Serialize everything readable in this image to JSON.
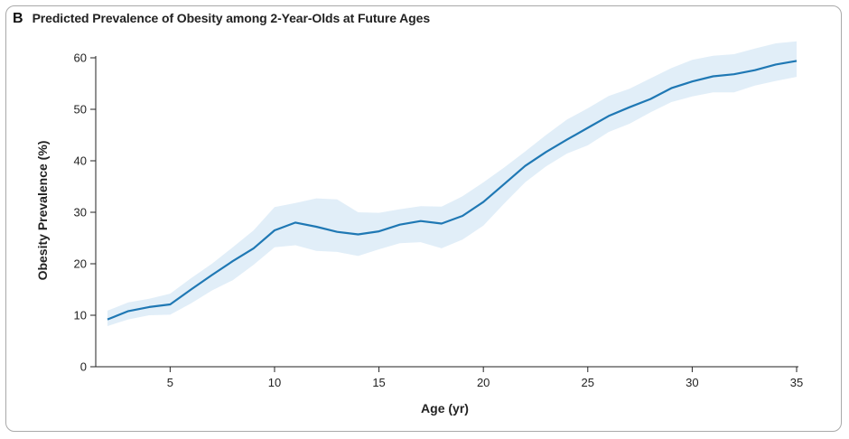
{
  "panel_label": "B",
  "chart_data": {
    "type": "line",
    "title": "Predicted Prevalence of Obesity among 2-Year-Olds at Future Ages",
    "xlabel": "Age (yr)",
    "ylabel": "Obesity Prevalence (%)",
    "xlim": [
      2,
      35
    ],
    "ylim": [
      0,
      60
    ],
    "xticks": [
      5,
      10,
      15,
      20,
      25,
      30,
      35
    ],
    "yticks": [
      0,
      10,
      20,
      30,
      40,
      50,
      60
    ],
    "grid": false,
    "colors": {
      "line": "#1f78b4",
      "band": "#e1eef8"
    },
    "x": [
      2,
      3,
      4,
      5,
      6,
      7,
      8,
      9,
      10,
      11,
      12,
      13,
      14,
      15,
      16,
      17,
      18,
      19,
      20,
      21,
      22,
      23,
      24,
      25,
      26,
      27,
      28,
      29,
      30,
      31,
      32,
      33,
      34,
      35
    ],
    "y": [
      9.2,
      10.8,
      11.6,
      12.1,
      15.0,
      17.8,
      20.5,
      23.0,
      26.5,
      28.0,
      27.2,
      26.2,
      25.7,
      26.3,
      27.6,
      28.3,
      27.8,
      29.3,
      32.0,
      35.5,
      39.0,
      41.7,
      44.1,
      46.4,
      48.7,
      50.4,
      52.0,
      54.1,
      55.4,
      56.4,
      56.8,
      57.6,
      58.7,
      59.4
    ],
    "upper": [
      10.9,
      12.5,
      13.2,
      14.2,
      17.2,
      20.0,
      23.2,
      26.5,
      31.0,
      31.8,
      32.7,
      32.5,
      30.0,
      29.9,
      30.6,
      31.2,
      31.1,
      33.1,
      35.8,
      38.7,
      41.8,
      45.0,
      48.0,
      50.2,
      52.6,
      54.0,
      56.0,
      58.0,
      59.6,
      60.4,
      60.7,
      61.8,
      62.8,
      63.2
    ],
    "lower": [
      7.9,
      9.2,
      10.0,
      10.1,
      12.3,
      14.8,
      16.8,
      19.8,
      23.2,
      23.6,
      22.5,
      22.3,
      21.5,
      22.8,
      24.0,
      24.2,
      23.0,
      24.7,
      27.4,
      31.7,
      35.8,
      38.9,
      41.4,
      43.0,
      45.6,
      47.2,
      49.4,
      51.4,
      52.5,
      53.3,
      53.3,
      54.6,
      55.5,
      56.3
    ]
  }
}
